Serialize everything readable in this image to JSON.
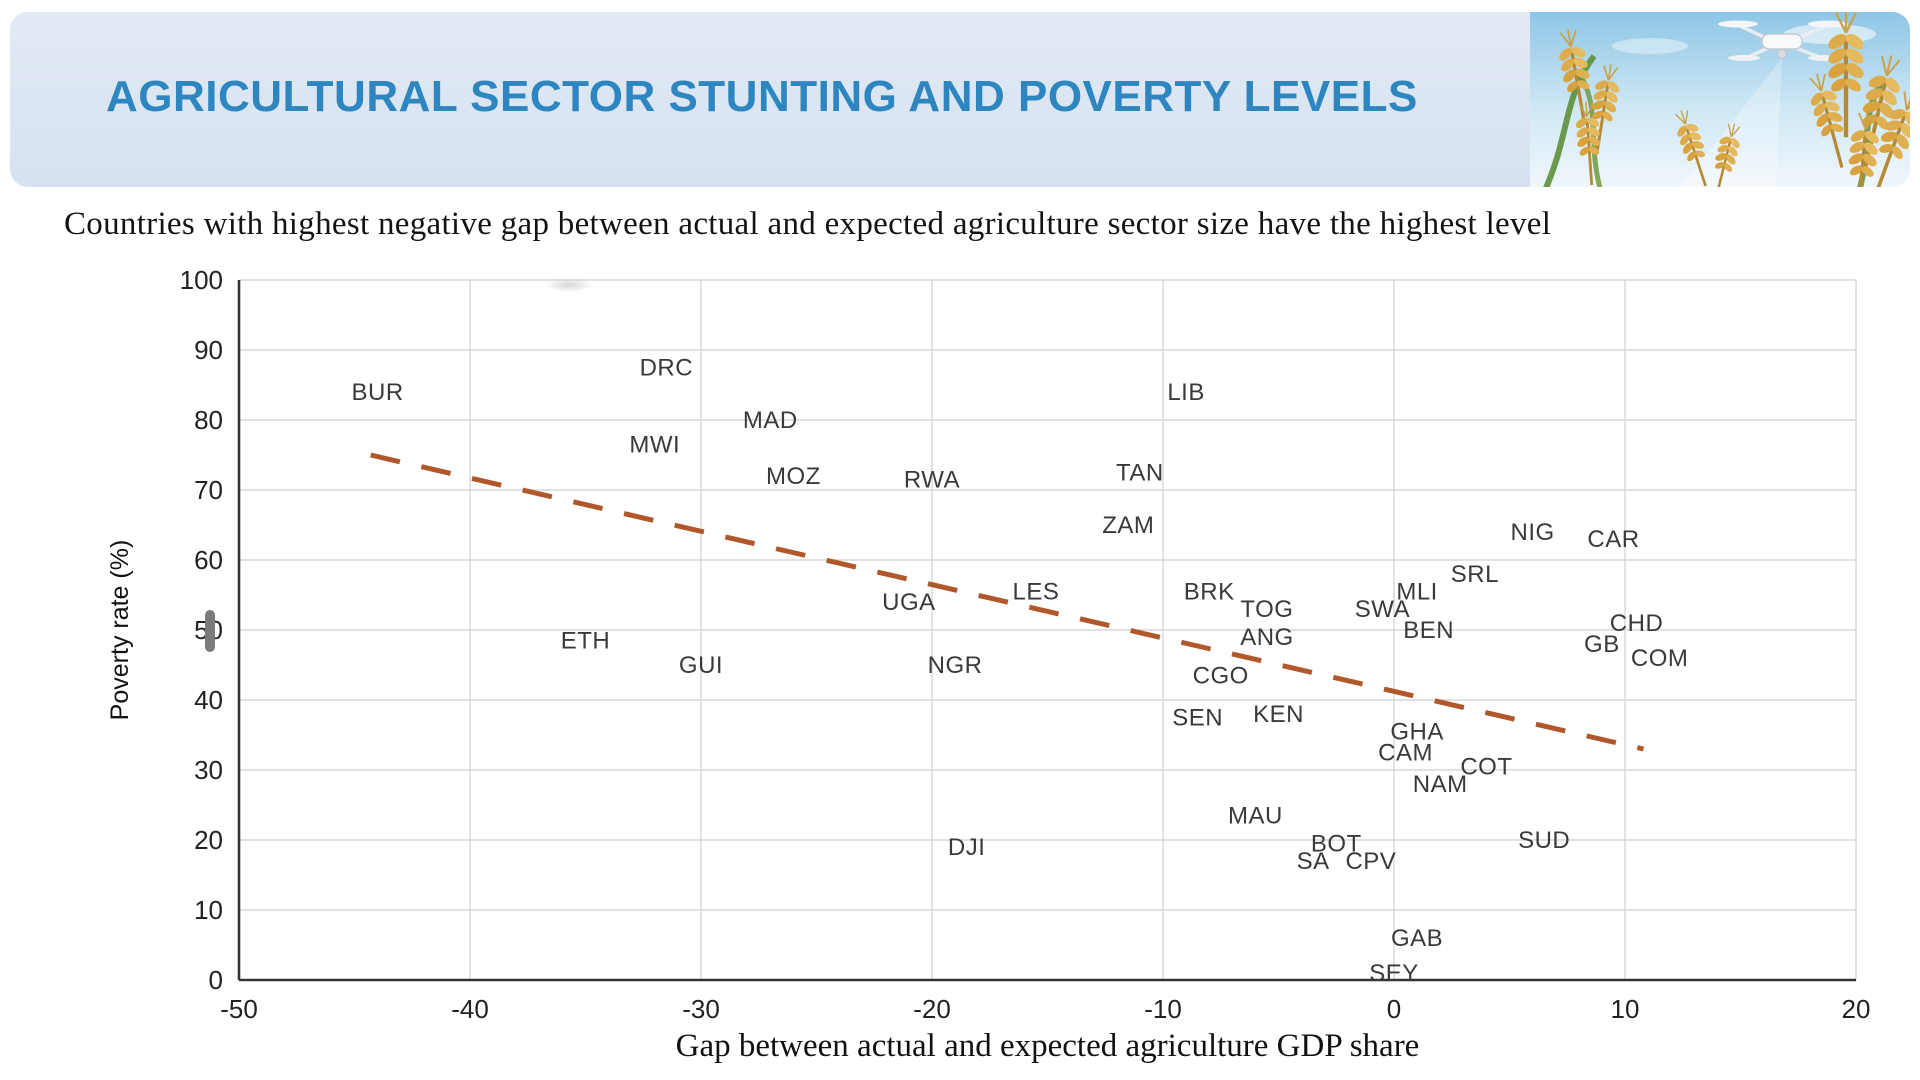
{
  "header": {
    "title": "AGRICULTURAL SECTOR STUNTING AND POVERTY LEVELS",
    "title_color": "#2e86c1",
    "banner_bg": "#d9e4f1",
    "corner_image_alt": "wheat crops with agricultural drone",
    "icons": [
      "drone-icon",
      "wheat-icon"
    ]
  },
  "subtitle": "Countries with highest negative gap between actual and expected agriculture sector size have the highest level",
  "chart_data": {
    "type": "scatter",
    "title": "",
    "xlabel": "Gap between actual and expected agriculture GDP share",
    "ylabel": "Poverty rate (%)",
    "xlim": [
      -50,
      20
    ],
    "ylim": [
      0,
      100
    ],
    "x_ticks": [
      -50,
      -40,
      -30,
      -20,
      -10,
      0,
      10,
      20
    ],
    "y_ticks": [
      0,
      10,
      20,
      30,
      40,
      50,
      60,
      70,
      80,
      90,
      100
    ],
    "grid": true,
    "legend": false,
    "marker": "country-code-text",
    "points": [
      {
        "label": "BUR",
        "x": -44,
        "y": 84
      },
      {
        "label": "DRC",
        "x": -31.5,
        "y": 87.5
      },
      {
        "label": "MAD",
        "x": -27,
        "y": 80
      },
      {
        "label": "MWI",
        "x": -32,
        "y": 76.5
      },
      {
        "label": "MOZ",
        "x": -26,
        "y": 72
      },
      {
        "label": "RWA",
        "x": -20,
        "y": 71.5
      },
      {
        "label": "LIB",
        "x": -9,
        "y": 84
      },
      {
        "label": "TAN",
        "x": -11,
        "y": 72.5
      },
      {
        "label": "ZAM",
        "x": -11.5,
        "y": 65
      },
      {
        "label": "NIG",
        "x": 6,
        "y": 64
      },
      {
        "label": "CAR",
        "x": 9.5,
        "y": 63
      },
      {
        "label": "SRL",
        "x": 3.5,
        "y": 58
      },
      {
        "label": "LES",
        "x": -15.5,
        "y": 55.5
      },
      {
        "label": "BRK",
        "x": -8,
        "y": 55.5
      },
      {
        "label": "MLI",
        "x": 1,
        "y": 55.5
      },
      {
        "label": "UGA",
        "x": -21,
        "y": 54
      },
      {
        "label": "TOG",
        "x": -5.5,
        "y": 53
      },
      {
        "label": "SWA",
        "x": -0.5,
        "y": 53
      },
      {
        "label": "CHD",
        "x": 10.5,
        "y": 51
      },
      {
        "label": "BEN",
        "x": 1.5,
        "y": 50
      },
      {
        "label": "ANG",
        "x": -5.5,
        "y": 49
      },
      {
        "label": "ETH",
        "x": -35,
        "y": 48.5
      },
      {
        "label": "GB",
        "x": 9,
        "y": 48
      },
      {
        "label": "COM",
        "x": 11.5,
        "y": 46
      },
      {
        "label": "GUI",
        "x": -30,
        "y": 45
      },
      {
        "label": "NGR",
        "x": -19,
        "y": 45
      },
      {
        "label": "CGO",
        "x": -7.5,
        "y": 43.5
      },
      {
        "label": "KEN",
        "x": -5,
        "y": 38
      },
      {
        "label": "SEN",
        "x": -8.5,
        "y": 37.5
      },
      {
        "label": "GHA",
        "x": 1,
        "y": 35.5
      },
      {
        "label": "CAM",
        "x": 0.5,
        "y": 32.5
      },
      {
        "label": "COT",
        "x": 4,
        "y": 30.5
      },
      {
        "label": "NAM",
        "x": 2,
        "y": 28
      },
      {
        "label": "MAU",
        "x": -6,
        "y": 23.5
      },
      {
        "label": "SUD",
        "x": 6.5,
        "y": 20
      },
      {
        "label": "BOT",
        "x": -2.5,
        "y": 19.5
      },
      {
        "label": "DJI",
        "x": -18.5,
        "y": 19
      },
      {
        "label": "SA",
        "x": -3.5,
        "y": 17
      },
      {
        "label": "CPV",
        "x": -1,
        "y": 17
      },
      {
        "label": "GAB",
        "x": 1,
        "y": 6
      },
      {
        "label": "SEY",
        "x": 0,
        "y": 1
      }
    ],
    "trendline": {
      "x1": -44.3,
      "y1": 75,
      "x2": 10.8,
      "y2": 33,
      "style": "dashed",
      "color": "#b0582c"
    }
  }
}
